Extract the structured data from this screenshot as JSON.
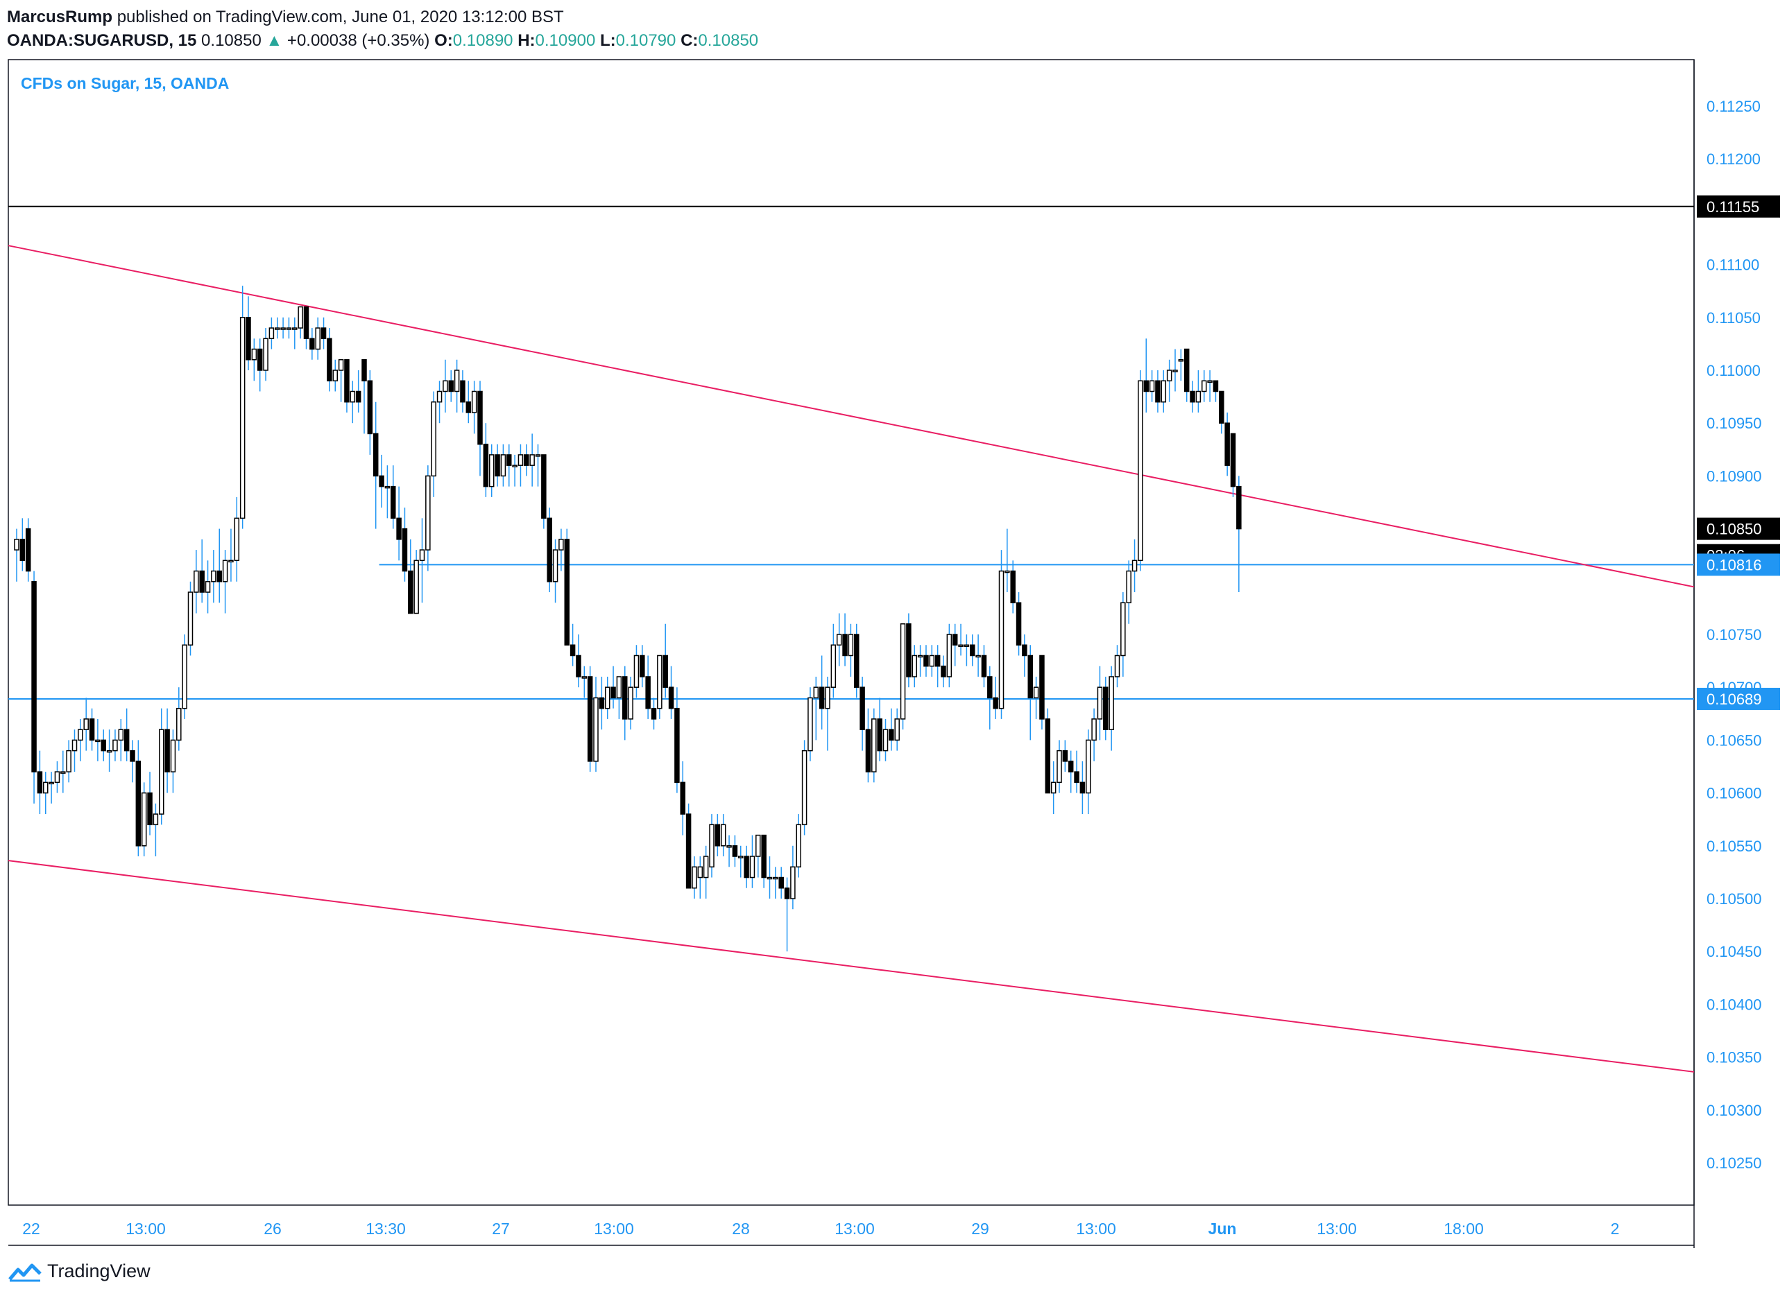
{
  "header": {
    "author": "MarcusRump",
    "published": "published on TradingView.com, June 01, 2020 13:12:00 BST",
    "symbol": "OANDA:SUGARUSD, 15",
    "last": "0.10850",
    "change_arrow": "▲",
    "change": "+0.00038 (+0.35%)",
    "o_label": "O:",
    "o_value": "0.10890",
    "h_label": "H:",
    "h_value": "0.10900",
    "l_label": "L:",
    "l_value": "0.10790",
    "c_label": "C:",
    "c_value": "0.10850"
  },
  "chart_data": {
    "type": "candlestick",
    "title": "CFDs on Sugar, 15, OANDA",
    "y_ticks": [
      "0.11250",
      "0.11200",
      "0.11100",
      "0.11050",
      "0.11000",
      "0.10950",
      "0.10900",
      "0.10750",
      "0.10700",
      "0.10650",
      "0.10600",
      "0.10550",
      "0.10500",
      "0.10450",
      "0.10400",
      "0.10350",
      "0.10300",
      "0.10250"
    ],
    "y_tick_values": [
      0.1125,
      0.112,
      0.111,
      0.1105,
      0.11,
      0.1095,
      0.109,
      0.1075,
      0.107,
      0.1065,
      0.106,
      0.1055,
      0.105,
      0.1045,
      0.104,
      0.1035,
      0.103,
      0.1025
    ],
    "ylim": [
      0.102,
      0.113
    ],
    "x_ticks": [
      "22",
      "13:00",
      "26",
      "13:30",
      "27",
      "13:00",
      "28",
      "13:00",
      "29",
      "13:00",
      "Jun",
      "13:00",
      "18:00",
      "2"
    ],
    "x_tick_bold": [
      false,
      false,
      false,
      false,
      false,
      false,
      false,
      false,
      false,
      false,
      true,
      false,
      false,
      false
    ],
    "price_labels": [
      {
        "text": "0.11155",
        "value": 0.11155,
        "style": "black"
      },
      {
        "text": "0.10850",
        "value": 0.1085,
        "style": "black"
      },
      {
        "text": "03:06",
        "value": 0.10825,
        "style": "black"
      },
      {
        "text": "0.10816",
        "value": 0.10816,
        "style": "blue"
      },
      {
        "text": "0.10689",
        "value": 0.10689,
        "style": "blue"
      }
    ],
    "horizontal_lines": [
      {
        "value": 0.11155,
        "color": "#000000",
        "from": 0
      },
      {
        "value": 0.10816,
        "color": "#2196f3",
        "from": 0.22
      },
      {
        "value": 0.10689,
        "color": "#2196f3",
        "from": 0
      }
    ],
    "trend_lines": [
      {
        "color": "#e91e63",
        "x0": 0,
        "y0": 0.11118,
        "x1": 1,
        "y1": 0.10795
      },
      {
        "color": "#e91e63",
        "x0": 0,
        "y0": 0.10536,
        "x1": 1,
        "y1": 0.10336
      }
    ],
    "ohlc": [
      [
        0.1083,
        0.1085,
        0.108,
        0.1084
      ],
      [
        0.1084,
        0.1086,
        0.1081,
        0.1082
      ],
      [
        0.1085,
        0.1086,
        0.108,
        0.1081
      ],
      [
        0.108,
        0.1081,
        0.1059,
        0.1062
      ],
      [
        0.1062,
        0.1064,
        0.1058,
        0.106
      ],
      [
        0.106,
        0.1062,
        0.1058,
        0.1061
      ],
      [
        0.1061,
        0.1062,
        0.1059,
        0.1061
      ],
      [
        0.1061,
        0.1063,
        0.106,
        0.1062
      ],
      [
        0.1062,
        0.1064,
        0.106,
        0.1062
      ],
      [
        0.1062,
        0.1065,
        0.1061,
        0.1064
      ],
      [
        0.1064,
        0.1066,
        0.1062,
        0.1065
      ],
      [
        0.1065,
        0.1067,
        0.1063,
        0.1066
      ],
      [
        0.1066,
        0.1069,
        0.1064,
        0.1067
      ],
      [
        0.1067,
        0.1068,
        0.1064,
        0.1065
      ],
      [
        0.1065,
        0.1067,
        0.1063,
        0.1065
      ],
      [
        0.1065,
        0.1066,
        0.1063,
        0.1064
      ],
      [
        0.1064,
        0.1066,
        0.1062,
        0.1064
      ],
      [
        0.1064,
        0.1066,
        0.1063,
        0.1065
      ],
      [
        0.1065,
        0.1067,
        0.1063,
        0.1066
      ],
      [
        0.1066,
        0.1068,
        0.1063,
        0.1064
      ],
      [
        0.1064,
        0.1065,
        0.1061,
        0.1063
      ],
      [
        0.1063,
        0.1065,
        0.1054,
        0.1055
      ],
      [
        0.1055,
        0.1061,
        0.1054,
        0.106
      ],
      [
        0.106,
        0.1062,
        0.1056,
        0.1057
      ],
      [
        0.1057,
        0.1059,
        0.1054,
        0.1058
      ],
      [
        0.1058,
        0.1068,
        0.1057,
        0.1066
      ],
      [
        0.1066,
        0.1068,
        0.106,
        0.1062
      ],
      [
        0.1062,
        0.1066,
        0.106,
        0.1065
      ],
      [
        0.1065,
        0.107,
        0.1064,
        0.1068
      ],
      [
        0.1068,
        0.1075,
        0.1067,
        0.1074
      ],
      [
        0.1074,
        0.108,
        0.1073,
        0.1079
      ],
      [
        0.1079,
        0.1083,
        0.1077,
        0.1081
      ],
      [
        0.1081,
        0.1084,
        0.1078,
        0.1079
      ],
      [
        0.1079,
        0.1082,
        0.1077,
        0.108
      ],
      [
        0.108,
        0.1083,
        0.1078,
        0.1081
      ],
      [
        0.1081,
        0.1085,
        0.1078,
        0.108
      ],
      [
        0.108,
        0.1083,
        0.1077,
        0.1082
      ],
      [
        0.1082,
        0.1085,
        0.108,
        0.1082
      ],
      [
        0.1082,
        0.1088,
        0.108,
        0.1086
      ],
      [
        0.1086,
        0.1108,
        0.1085,
        0.1105
      ],
      [
        0.1105,
        0.1107,
        0.11,
        0.1101
      ],
      [
        0.1101,
        0.1103,
        0.1099,
        0.1102
      ],
      [
        0.1102,
        0.1103,
        0.1098,
        0.11
      ],
      [
        0.11,
        0.1104,
        0.1099,
        0.1103
      ],
      [
        0.1103,
        0.1105,
        0.1102,
        0.1104
      ],
      [
        0.1104,
        0.1105,
        0.1103,
        0.1104
      ],
      [
        0.1104,
        0.1105,
        0.1103,
        0.1104
      ],
      [
        0.1104,
        0.1105,
        0.1103,
        0.1104
      ],
      [
        0.1104,
        0.1105,
        0.1102,
        0.1104
      ],
      [
        0.1104,
        0.1106,
        0.1103,
        0.1106
      ],
      [
        0.1106,
        0.1106,
        0.1102,
        0.1103
      ],
      [
        0.1103,
        0.1104,
        0.1101,
        0.1102
      ],
      [
        0.1102,
        0.1105,
        0.1101,
        0.1104
      ],
      [
        0.1104,
        0.1105,
        0.1102,
        0.1103
      ],
      [
        0.1103,
        0.1104,
        0.1098,
        0.1099
      ],
      [
        0.1099,
        0.1101,
        0.1098,
        0.11
      ],
      [
        0.11,
        0.1101,
        0.1097,
        0.1101
      ],
      [
        0.1101,
        0.1101,
        0.1096,
        0.1097
      ],
      [
        0.1097,
        0.1099,
        0.1095,
        0.1098
      ],
      [
        0.1098,
        0.11,
        0.1096,
        0.1097
      ],
      [
        0.1101,
        0.1101,
        0.1094,
        0.1099
      ],
      [
        0.1099,
        0.11,
        0.1092,
        0.1094
      ],
      [
        0.1094,
        0.1097,
        0.1085,
        0.109
      ],
      [
        0.109,
        0.1092,
        0.1087,
        0.1089
      ],
      [
        0.1089,
        0.1091,
        0.1086,
        0.1089
      ],
      [
        0.1089,
        0.1091,
        0.1085,
        0.1086
      ],
      [
        0.1086,
        0.1089,
        0.1082,
        0.1084
      ],
      [
        0.1085,
        0.1087,
        0.108,
        0.1081
      ],
      [
        0.1081,
        0.1084,
        0.1077,
        0.1077
      ],
      [
        0.1077,
        0.1083,
        0.1077,
        0.1082
      ],
      [
        0.1082,
        0.1086,
        0.1078,
        0.1083
      ],
      [
        0.1083,
        0.1091,
        0.1081,
        0.109
      ],
      [
        0.109,
        0.1098,
        0.1088,
        0.1097
      ],
      [
        0.1097,
        0.1099,
        0.1095,
        0.1098
      ],
      [
        0.1098,
        0.1101,
        0.1096,
        0.1099
      ],
      [
        0.1099,
        0.11,
        0.1097,
        0.1098
      ],
      [
        0.1098,
        0.1101,
        0.1096,
        0.11
      ],
      [
        0.1099,
        0.11,
        0.1096,
        0.1097
      ],
      [
        0.1097,
        0.1099,
        0.1095,
        0.1096
      ],
      [
        0.1096,
        0.1099,
        0.1094,
        0.1098
      ],
      [
        0.1098,
        0.1099,
        0.109,
        0.1093
      ],
      [
        0.1093,
        0.1095,
        0.1088,
        0.1089
      ],
      [
        0.1089,
        0.1093,
        0.1088,
        0.1092
      ],
      [
        0.1092,
        0.1093,
        0.1089,
        0.109
      ],
      [
        0.109,
        0.1093,
        0.1089,
        0.1092
      ],
      [
        0.1092,
        0.1093,
        0.1089,
        0.1091
      ],
      [
        0.1091,
        0.1092,
        0.1089,
        0.1091
      ],
      [
        0.1091,
        0.1093,
        0.1089,
        0.1092
      ],
      [
        0.1092,
        0.1093,
        0.109,
        0.1091
      ],
      [
        0.1091,
        0.1094,
        0.1089,
        0.1092
      ],
      [
        0.1092,
        0.1093,
        0.1089,
        0.1092
      ],
      [
        0.1092,
        0.1092,
        0.1085,
        0.1086
      ],
      [
        0.1086,
        0.1087,
        0.1079,
        0.108
      ],
      [
        0.108,
        0.1084,
        0.1078,
        0.1083
      ],
      [
        0.1083,
        0.1085,
        0.1081,
        0.1084
      ],
      [
        0.1084,
        0.1085,
        0.1074,
        0.1074
      ],
      [
        0.1074,
        0.1076,
        0.1072,
        0.1073
      ],
      [
        0.1073,
        0.1075,
        0.107,
        0.1071
      ],
      [
        0.1071,
        0.1072,
        0.1069,
        0.1071
      ],
      [
        0.1071,
        0.1072,
        0.1062,
        0.1063
      ],
      [
        0.1063,
        0.1071,
        0.1062,
        0.1069
      ],
      [
        0.1069,
        0.1071,
        0.1066,
        0.1068
      ],
      [
        0.1068,
        0.1071,
        0.1067,
        0.107
      ],
      [
        0.107,
        0.1072,
        0.1068,
        0.1069
      ],
      [
        0.1069,
        0.1071,
        0.1067,
        0.1071
      ],
      [
        0.1071,
        0.1072,
        0.1065,
        0.1067
      ],
      [
        0.1067,
        0.1071,
        0.1066,
        0.107
      ],
      [
        0.107,
        0.1074,
        0.1069,
        0.1073
      ],
      [
        0.1073,
        0.1074,
        0.107,
        0.1071
      ],
      [
        0.1071,
        0.1073,
        0.1067,
        0.1068
      ],
      [
        0.1068,
        0.1069,
        0.1066,
        0.1067
      ],
      [
        0.1068,
        0.1073,
        0.1067,
        0.1073
      ],
      [
        0.1073,
        0.1076,
        0.1069,
        0.107
      ],
      [
        0.107,
        0.1072,
        0.1067,
        0.1068
      ],
      [
        0.1068,
        0.107,
        0.106,
        0.1061
      ],
      [
        0.1061,
        0.1063,
        0.1056,
        0.1058
      ],
      [
        0.1058,
        0.1059,
        0.1051,
        0.1051
      ],
      [
        0.1051,
        0.1054,
        0.105,
        0.1053
      ],
      [
        0.1052,
        0.1054,
        0.105,
        0.1053
      ],
      [
        0.1052,
        0.1055,
        0.105,
        0.1054
      ],
      [
        0.1053,
        0.1058,
        0.1052,
        0.1057
      ],
      [
        0.1057,
        0.1058,
        0.1054,
        0.1055
      ],
      [
        0.1055,
        0.1058,
        0.1054,
        0.1057
      ],
      [
        0.1055,
        0.1056,
        0.1053,
        0.1055
      ],
      [
        0.1055,
        0.1056,
        0.1053,
        0.1054
      ],
      [
        0.1054,
        0.1055,
        0.1052,
        0.1054
      ],
      [
        0.1054,
        0.1055,
        0.1051,
        0.1052
      ],
      [
        0.1052,
        0.1056,
        0.1051,
        0.1054
      ],
      [
        0.1054,
        0.1056,
        0.1052,
        0.1056
      ],
      [
        0.1056,
        0.1056,
        0.1051,
        0.1052
      ],
      [
        0.1052,
        0.1054,
        0.105,
        0.1052
      ],
      [
        0.1052,
        0.1053,
        0.105,
        0.1052
      ],
      [
        0.1052,
        0.1053,
        0.105,
        0.1051
      ],
      [
        0.1051,
        0.1052,
        0.1045,
        0.105
      ],
      [
        0.105,
        0.1055,
        0.1049,
        0.1053
      ],
      [
        0.1053,
        0.1058,
        0.1052,
        0.1057
      ],
      [
        0.1057,
        0.1065,
        0.1056,
        0.1064
      ],
      [
        0.1064,
        0.107,
        0.1063,
        0.1069
      ],
      [
        0.1069,
        0.1071,
        0.1065,
        0.107
      ],
      [
        0.107,
        0.1073,
        0.1066,
        0.1068
      ],
      [
        0.1068,
        0.1071,
        0.1064,
        0.107
      ],
      [
        0.107,
        0.1076,
        0.1069,
        0.1074
      ],
      [
        0.1074,
        0.1077,
        0.1072,
        0.1075
      ],
      [
        0.1075,
        0.1077,
        0.1072,
        0.1073
      ],
      [
        0.1073,
        0.1076,
        0.1071,
        0.1075
      ],
      [
        0.1075,
        0.1076,
        0.1069,
        0.107
      ],
      [
        0.107,
        0.1071,
        0.1064,
        0.1066
      ],
      [
        0.1066,
        0.1068,
        0.1061,
        0.1062
      ],
      [
        0.1062,
        0.1068,
        0.1061,
        0.1067
      ],
      [
        0.1067,
        0.1069,
        0.1063,
        0.1064
      ],
      [
        0.1064,
        0.1067,
        0.1063,
        0.1066
      ],
      [
        0.1066,
        0.1068,
        0.1064,
        0.1065
      ],
      [
        0.1065,
        0.1068,
        0.1064,
        0.1067
      ],
      [
        0.1067,
        0.1076,
        0.1066,
        0.1076
      ],
      [
        0.1076,
        0.1077,
        0.107,
        0.1071
      ],
      [
        0.1071,
        0.1074,
        0.107,
        0.1073
      ],
      [
        0.1073,
        0.1074,
        0.1071,
        0.1073
      ],
      [
        0.1073,
        0.1074,
        0.1071,
        0.1072
      ],
      [
        0.1072,
        0.1074,
        0.1071,
        0.1073
      ],
      [
        0.1073,
        0.1074,
        0.107,
        0.1072
      ],
      [
        0.1072,
        0.1073,
        0.107,
        0.1071
      ],
      [
        0.1071,
        0.1076,
        0.107,
        0.1075
      ],
      [
        0.1075,
        0.1076,
        0.1072,
        0.1074
      ],
      [
        0.1074,
        0.1076,
        0.1073,
        0.1074
      ],
      [
        0.1074,
        0.1075,
        0.1072,
        0.1074
      ],
      [
        0.1074,
        0.1075,
        0.1072,
        0.1073
      ],
      [
        0.1073,
        0.1075,
        0.1071,
        0.1073
      ],
      [
        0.1073,
        0.1074,
        0.107,
        0.1071
      ],
      [
        0.1071,
        0.1072,
        0.1066,
        0.1069
      ],
      [
        0.1069,
        0.1071,
        0.1067,
        0.1068
      ],
      [
        0.1068,
        0.1083,
        0.1067,
        0.1081
      ],
      [
        0.1081,
        0.1085,
        0.1079,
        0.1081
      ],
      [
        0.1081,
        0.1082,
        0.1077,
        0.1078
      ],
      [
        0.1078,
        0.1079,
        0.1073,
        0.1074
      ],
      [
        0.1074,
        0.1075,
        0.1071,
        0.1073
      ],
      [
        0.1073,
        0.1074,
        0.1065,
        0.1069
      ],
      [
        0.1069,
        0.1071,
        0.1067,
        0.107
      ],
      [
        0.1073,
        0.1073,
        0.1066,
        0.1067
      ],
      [
        0.1067,
        0.1068,
        0.106,
        0.106
      ],
      [
        0.106,
        0.1063,
        0.1058,
        0.1061
      ],
      [
        0.1061,
        0.1065,
        0.106,
        0.1064
      ],
      [
        0.1064,
        0.1065,
        0.1062,
        0.1063
      ],
      [
        0.1063,
        0.1064,
        0.106,
        0.1062
      ],
      [
        0.1062,
        0.1064,
        0.106,
        0.1061
      ],
      [
        0.1061,
        0.1063,
        0.1058,
        0.106
      ],
      [
        0.106,
        0.1066,
        0.1058,
        0.1065
      ],
      [
        0.1065,
        0.1068,
        0.1063,
        0.1067
      ],
      [
        0.1067,
        0.1072,
        0.1065,
        0.107
      ],
      [
        0.107,
        0.1071,
        0.1065,
        0.1066
      ],
      [
        0.1066,
        0.1072,
        0.1064,
        0.1071
      ],
      [
        0.1071,
        0.1074,
        0.107,
        0.1073
      ],
      [
        0.1073,
        0.1079,
        0.1071,
        0.1078
      ],
      [
        0.1078,
        0.1082,
        0.1076,
        0.1081
      ],
      [
        0.1081,
        0.1084,
        0.1079,
        0.1082
      ],
      [
        0.1082,
        0.11,
        0.1081,
        0.1099
      ],
      [
        0.1099,
        0.1103,
        0.1096,
        0.1098
      ],
      [
        0.1098,
        0.11,
        0.1097,
        0.1099
      ],
      [
        0.1099,
        0.11,
        0.1096,
        0.1097
      ],
      [
        0.1097,
        0.11,
        0.1096,
        0.1099
      ],
      [
        0.1099,
        0.1101,
        0.1097,
        0.11
      ],
      [
        0.11,
        0.1102,
        0.1098,
        0.11
      ],
      [
        0.1101,
        0.1102,
        0.1099,
        0.1101
      ],
      [
        0.1102,
        0.1102,
        0.1097,
        0.1098
      ],
      [
        0.1098,
        0.1099,
        0.1096,
        0.1097
      ],
      [
        0.1097,
        0.11,
        0.1096,
        0.1098
      ],
      [
        0.1098,
        0.11,
        0.1097,
        0.1099
      ],
      [
        0.1099,
        0.11,
        0.1097,
        0.1099
      ],
      [
        0.1099,
        0.1099,
        0.1097,
        0.1098
      ],
      [
        0.1098,
        0.1098,
        0.1094,
        0.1095
      ],
      [
        0.1095,
        0.1096,
        0.109,
        0.1091
      ],
      [
        0.1094,
        0.1094,
        0.1088,
        0.1089
      ],
      [
        0.1089,
        0.109,
        0.1079,
        0.1085
      ]
    ]
  },
  "footer": {
    "brand": "TradingView"
  }
}
